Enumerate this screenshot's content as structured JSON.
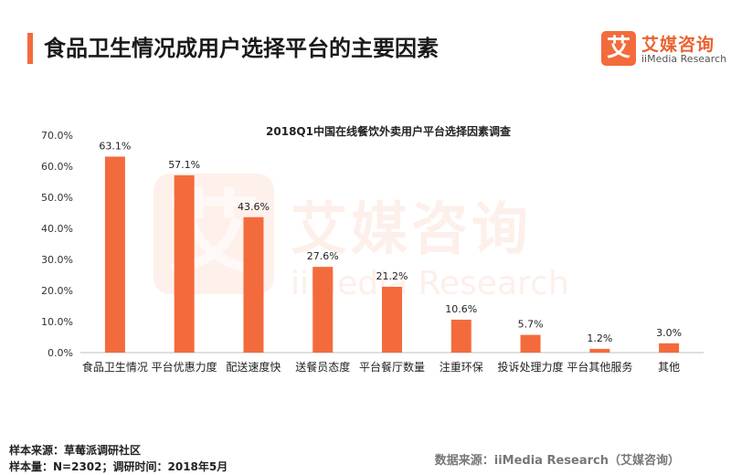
{
  "header": {
    "title": "食品卫生情况成用户选择平台的主要因素"
  },
  "brand": {
    "mark": "艾",
    "name_cn": "艾媒咨询",
    "name_en": "iiMedia Research",
    "accent_color": "#f36b3c"
  },
  "chart_data": {
    "type": "bar",
    "title": "2018Q1中国在线餐饮外卖用户平台选择因素调查",
    "categories": [
      "食品卫生情况",
      "平台优惠力度",
      "配送速度快",
      "送餐员态度",
      "平台餐厅数量",
      "注重环保",
      "投诉处理力度",
      "平台其他服务",
      "其他"
    ],
    "values": [
      63.1,
      57.1,
      43.6,
      27.6,
      21.2,
      10.6,
      5.7,
      1.2,
      3.0
    ],
    "data_labels": [
      "63.1%",
      "57.1%",
      "43.6%",
      "27.6%",
      "21.2%",
      "10.6%",
      "5.7%",
      "1.2%",
      "3.0%"
    ],
    "y_ticks": [
      "0.0%",
      "10.0%",
      "20.0%",
      "30.0%",
      "40.0%",
      "50.0%",
      "60.0%",
      "70.0%"
    ],
    "ylim": [
      0,
      70
    ],
    "xlabel": "",
    "ylabel": "",
    "grid": false,
    "bar_color": "#f36b3c"
  },
  "footer": {
    "source_sample": "样本来源：草莓派调研社区",
    "sample_size": "样本量：N=2302；调研时间：2018年5月",
    "data_source": "数据来源：iiMedia Research（艾媒咨询）"
  }
}
